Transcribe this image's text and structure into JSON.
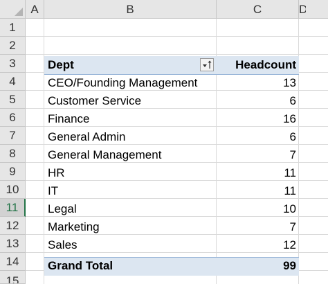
{
  "columns": [
    "A",
    "B",
    "C",
    "D"
  ],
  "rows": [
    "1",
    "2",
    "3",
    "4",
    "5",
    "6",
    "7",
    "8",
    "9",
    "10",
    "11",
    "12",
    "13",
    "14",
    "15"
  ],
  "active_row": "11",
  "pivot": {
    "header": {
      "dept": "Dept",
      "headcount": "Headcount"
    },
    "items": [
      {
        "dept": "CEO/Founding Management",
        "headcount": "13"
      },
      {
        "dept": "Customer Service",
        "headcount": "6"
      },
      {
        "dept": "Finance",
        "headcount": "16"
      },
      {
        "dept": "General Admin",
        "headcount": "6"
      },
      {
        "dept": "General Management",
        "headcount": "7"
      },
      {
        "dept": "HR",
        "headcount": "11"
      },
      {
        "dept": "IT",
        "headcount": "11"
      },
      {
        "dept": "Legal",
        "headcount": "10"
      },
      {
        "dept": "Marketing",
        "headcount": "7"
      },
      {
        "dept": "Sales",
        "headcount": "12"
      }
    ],
    "total": {
      "label": "Grand Total",
      "headcount": "99"
    }
  },
  "colors": {
    "header_fill": "#dce6f1",
    "header_border": "#95b3d7",
    "active_accent": "#217346"
  }
}
